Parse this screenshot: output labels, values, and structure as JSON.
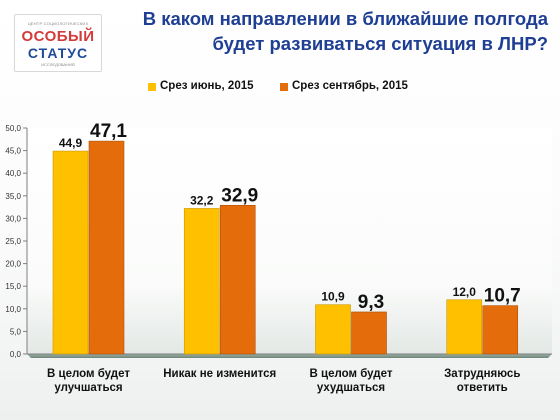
{
  "header": {
    "title_line1": "В каком направлении в ближайшие полгода",
    "title_line2": "будет развиваться ситуация в ЛНР?"
  },
  "logo": {
    "top_text": "ЦЕНТР СОЦИОЛОГИЧЕСКИХ",
    "word1": "ОСОБЫЙ",
    "word2": "СТАТУС",
    "bottom_text": "ИССЛЕДОВАНИЙ"
  },
  "colors": {
    "june": "#ffc000",
    "september": "#e46c0a",
    "title": "#1f3f94"
  },
  "chart_data": {
    "type": "bar",
    "title": "В каком направлении в ближайшие полгода будет развиваться ситуация в ЛНР?",
    "categories": [
      [
        "В целом будет",
        "улучшаться"
      ],
      [
        "Никак не изменится"
      ],
      [
        "В целом будет",
        "ухудшаться"
      ],
      [
        "Затрудняюсь",
        "ответить"
      ]
    ],
    "series": [
      {
        "name": "Срез июнь, 2015",
        "values": [
          44.9,
          32.2,
          10.9,
          12.0
        ],
        "labels": [
          "44,9",
          "32,2",
          "10,9",
          "12,0"
        ]
      },
      {
        "name": "Срез сентябрь, 2015",
        "values": [
          47.1,
          32.9,
          9.3,
          10.7
        ],
        "labels": [
          "47,1",
          "32,9",
          "9,3",
          "10,7"
        ]
      }
    ],
    "ylim": [
      0,
      50
    ],
    "yticks": [
      0,
      5,
      10,
      15,
      20,
      25,
      30,
      35,
      40,
      45,
      50
    ],
    "ytick_labels": [
      "0,0",
      "5,0",
      "10,0",
      "15,0",
      "20,0",
      "25,0",
      "30,0",
      "35,0",
      "40,0",
      "45,0",
      "50,0"
    ],
    "legend_position": "top",
    "grid": false
  }
}
